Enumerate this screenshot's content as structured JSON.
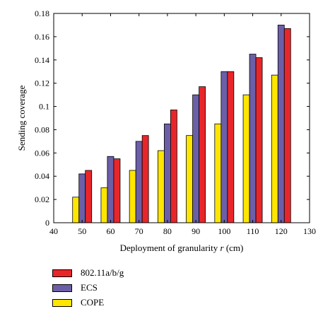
{
  "chart_data": {
    "type": "bar",
    "categories": [
      "50",
      "60",
      "70",
      "80",
      "90",
      "100",
      "110",
      "120"
    ],
    "x_values": [
      50,
      60,
      70,
      80,
      90,
      100,
      110,
      120
    ],
    "series": [
      {
        "name": "COPE",
        "color": "#ffe600",
        "values": [
          0.022,
          0.03,
          0.045,
          0.062,
          0.075,
          0.085,
          0.11,
          0.127
        ]
      },
      {
        "name": "ECS",
        "color": "#6c5fa8",
        "values": [
          0.042,
          0.057,
          0.07,
          0.085,
          0.11,
          0.13,
          0.145,
          0.17
        ]
      },
      {
        "name": "802.11a/b/g",
        "color": "#e8262a",
        "values": [
          0.045,
          0.055,
          0.075,
          0.097,
          0.117,
          0.13,
          0.142,
          0.167
        ]
      }
    ],
    "xlabel_prefix": "Deployment of granularity ",
    "xlabel_var": "r",
    "xlabel_suffix": " (cm)",
    "ylabel": "Sending coverage",
    "xlim": [
      40,
      130
    ],
    "ylim": [
      0,
      0.18
    ],
    "xticks": [
      "40",
      "50",
      "60",
      "70",
      "80",
      "90",
      "100",
      "110",
      "120",
      "130"
    ],
    "yticks": [
      "0",
      "0.02",
      "0.04",
      "0.06",
      "0.08",
      "0.1",
      "0.12",
      "0.14",
      "0.16",
      "0.18"
    ],
    "grid": false,
    "legend_position": "below-left",
    "legend_order": [
      "802.11a/b/g",
      "ECS",
      "COPE"
    ]
  }
}
